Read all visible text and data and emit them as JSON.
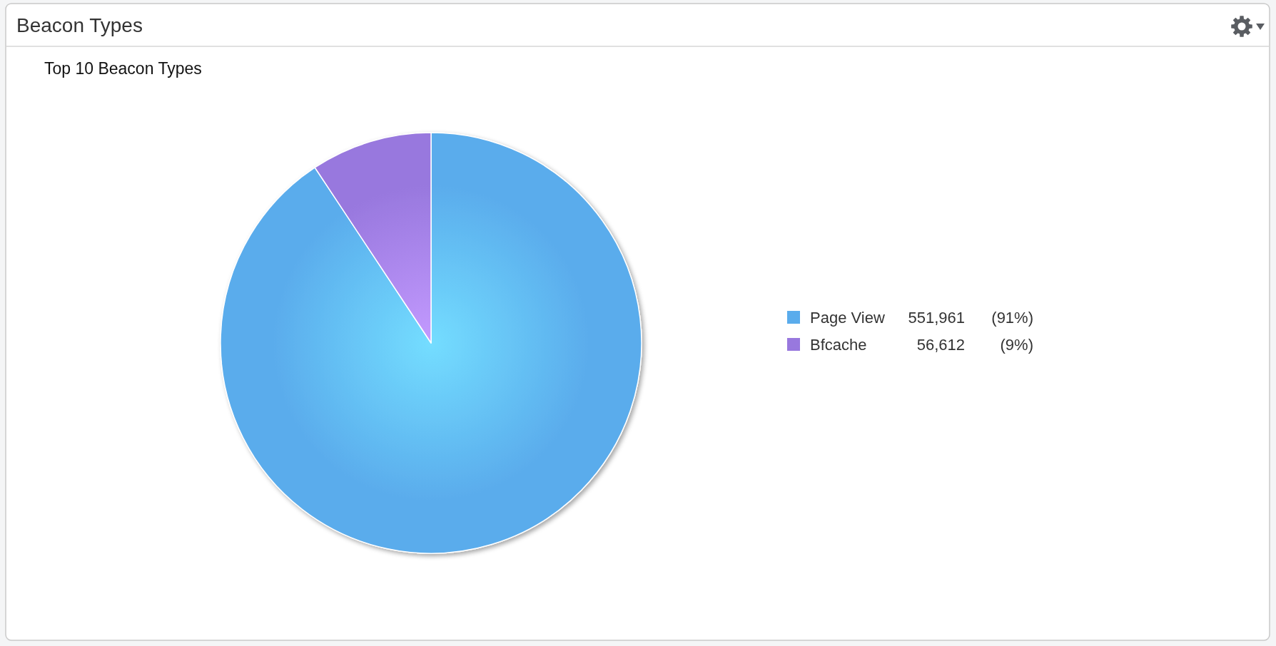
{
  "chart_data": {
    "type": "pie",
    "title": "Beacon Types",
    "subtitle": "Top 10 Beacon Types",
    "categories": [
      "Page View",
      "Bfcache"
    ],
    "values": [
      551961,
      56612
    ],
    "value_labels": [
      "551,961",
      "56,612"
    ],
    "annotations": [
      "(91%)",
      "(9%)"
    ],
    "colors": [
      "#5aacec",
      "#9878de"
    ],
    "legend": "right"
  }
}
